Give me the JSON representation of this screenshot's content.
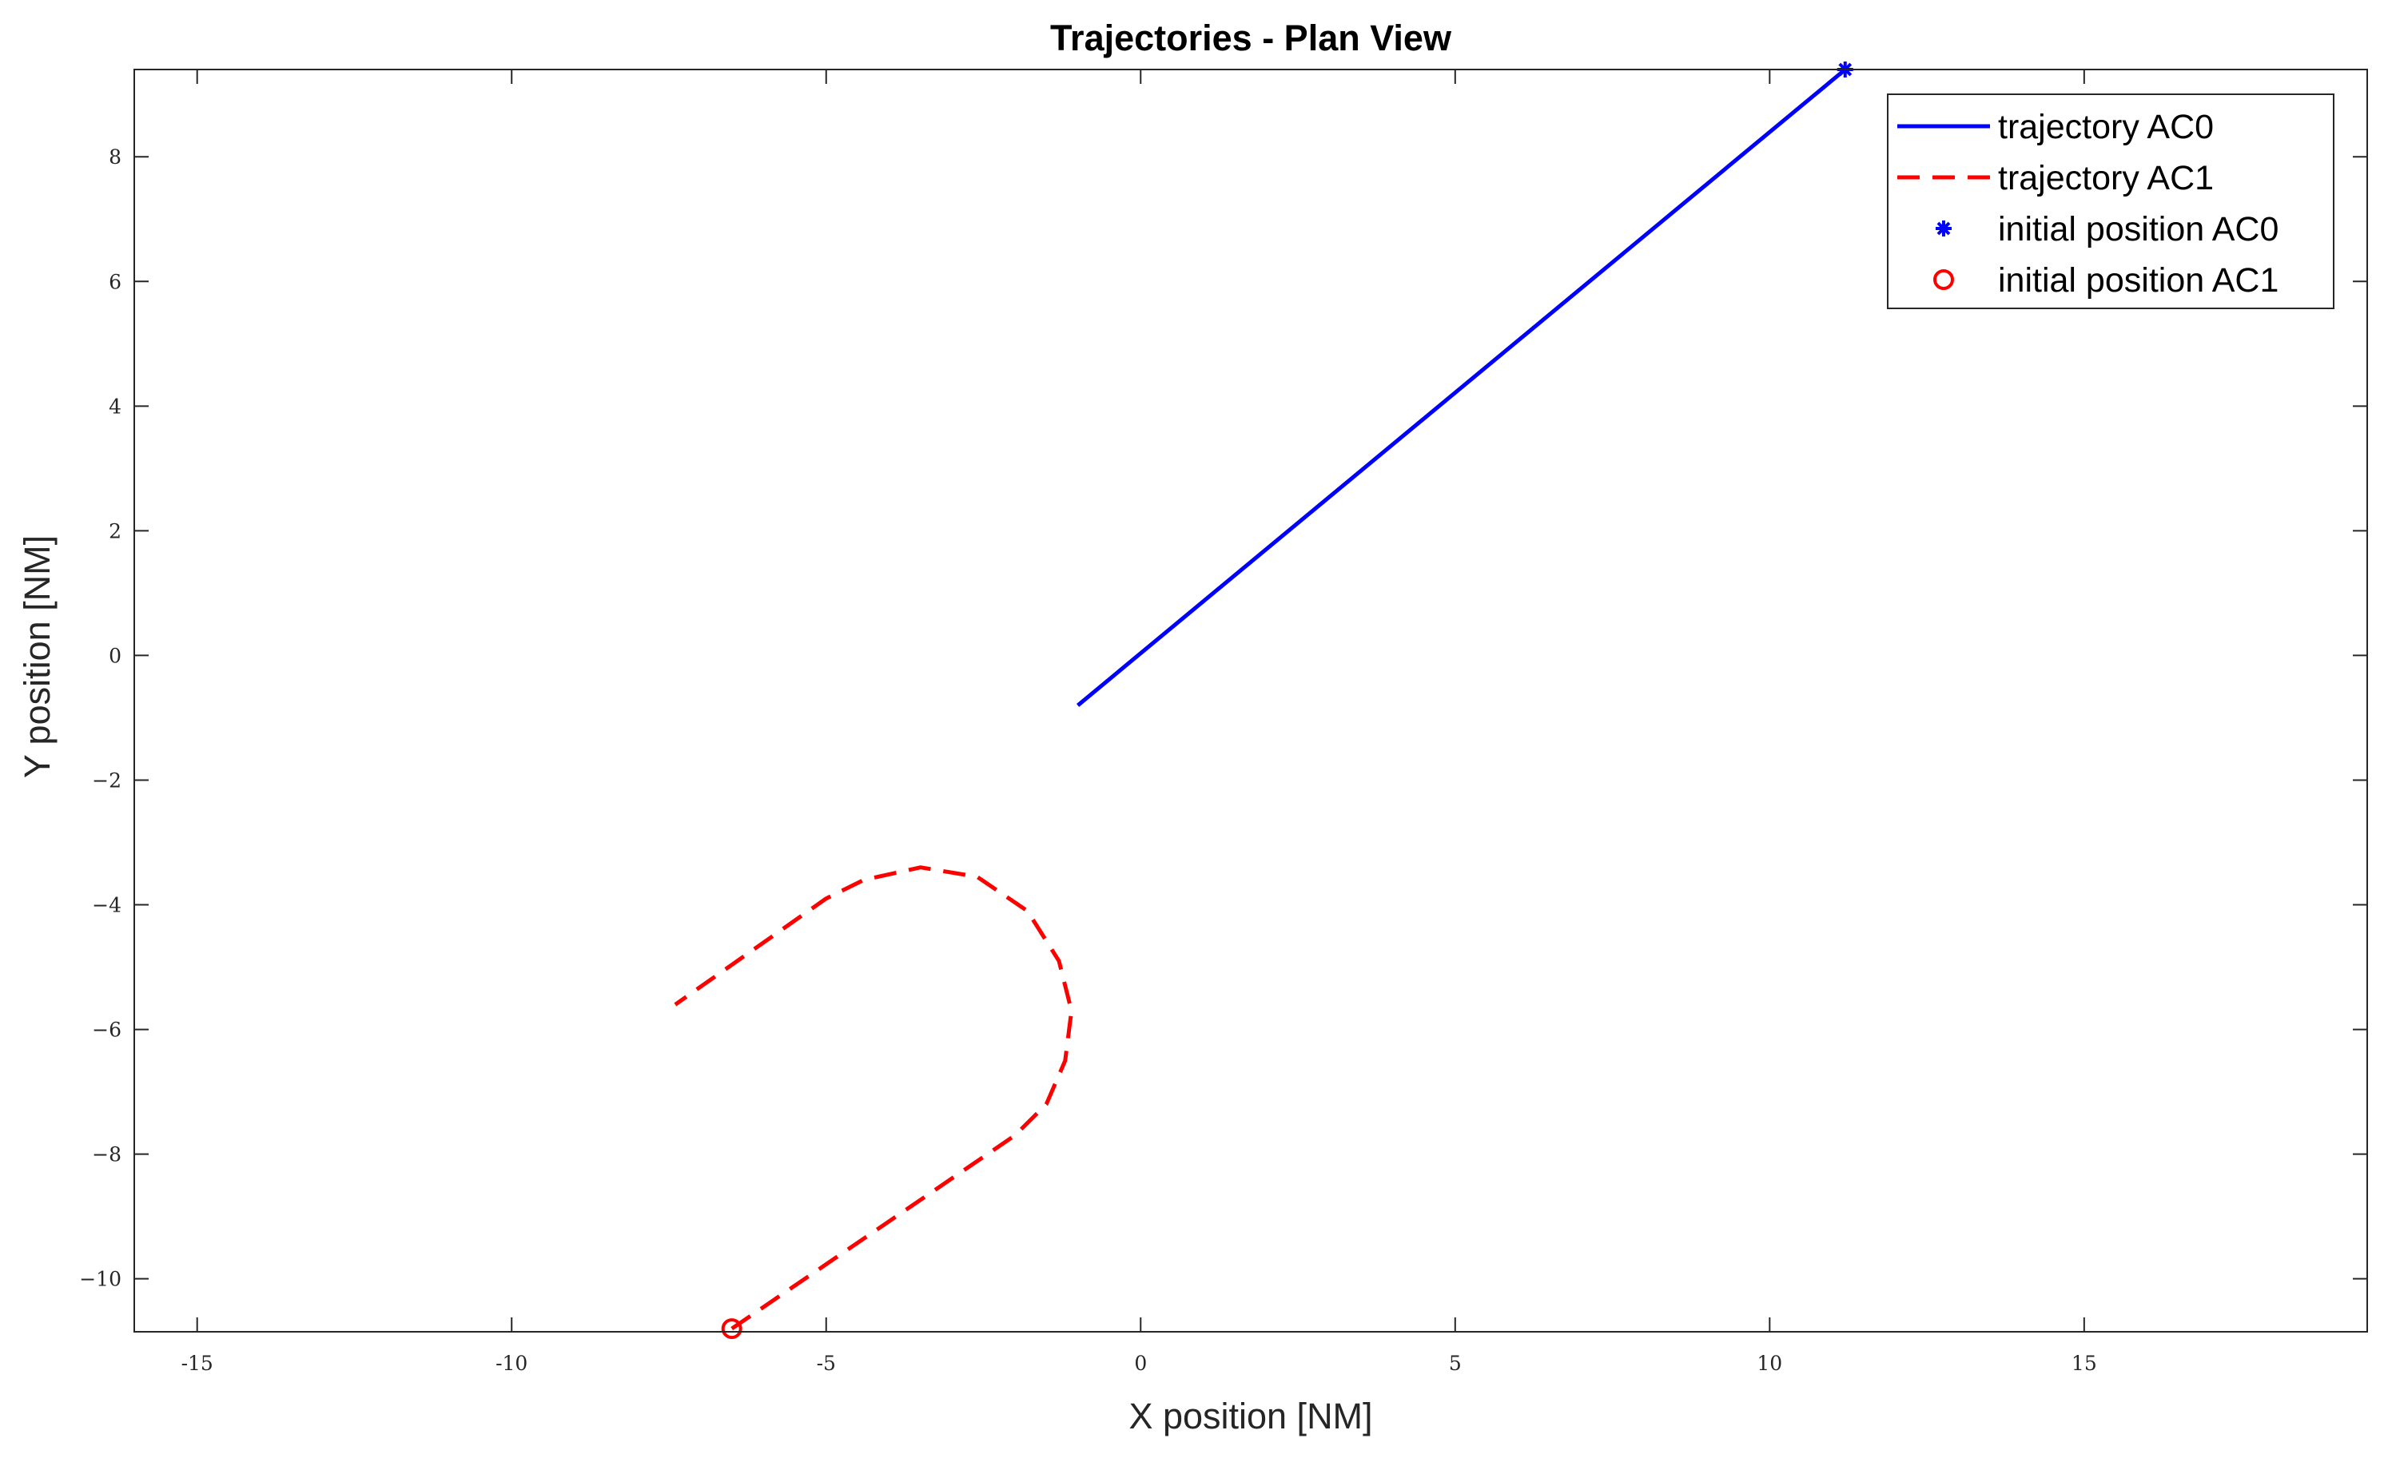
{
  "chart_data": {
    "type": "line",
    "title": "Trajectories - Plan View",
    "xlabel": "X position [NM]",
    "ylabel": "Y position [NM]",
    "xlim": [
      -16,
      19.5
    ],
    "ylim": [
      -10.85,
      9.4
    ],
    "xticks": [
      -15,
      -10,
      -5,
      0,
      5,
      10,
      15
    ],
    "yticks": [
      -10,
      -8,
      -6,
      -4,
      -2,
      0,
      2,
      4,
      6,
      8
    ],
    "xtick_labels": [
      "-15",
      "-10",
      "-5",
      "0",
      "5",
      "10",
      "15"
    ],
    "ytick_labels": [
      "−10",
      "−8",
      "−6",
      "−4",
      "−2",
      "0",
      "2",
      "4",
      "6",
      "8"
    ],
    "grid": false,
    "legend_position": "top-right",
    "series": [
      {
        "name": "trajectory AC0",
        "color": "#0000ff",
        "style": "solid",
        "x": [
          11.2,
          -1.0
        ],
        "y": [
          9.4,
          -0.8
        ]
      },
      {
        "name": "trajectory AC1",
        "color": "#ff0000",
        "style": "dashed",
        "x": [
          -6.5,
          -2.0,
          -1.5,
          -1.2,
          -1.1,
          -1.3,
          -1.8,
          -2.6,
          -3.5,
          -4.4,
          -5.0,
          -7.4
        ],
        "y": [
          -10.8,
          -7.7,
          -7.2,
          -6.5,
          -5.7,
          -4.9,
          -4.1,
          -3.55,
          -3.4,
          -3.6,
          -3.9,
          -5.6
        ]
      },
      {
        "name": "initial position AC0",
        "color": "#0000ff",
        "marker": "asterisk",
        "x": [
          11.2
        ],
        "y": [
          9.4
        ]
      },
      {
        "name": "initial position AC1",
        "color": "#ff0000",
        "marker": "circle",
        "x": [
          -6.5
        ],
        "y": [
          -10.8
        ]
      }
    ]
  }
}
